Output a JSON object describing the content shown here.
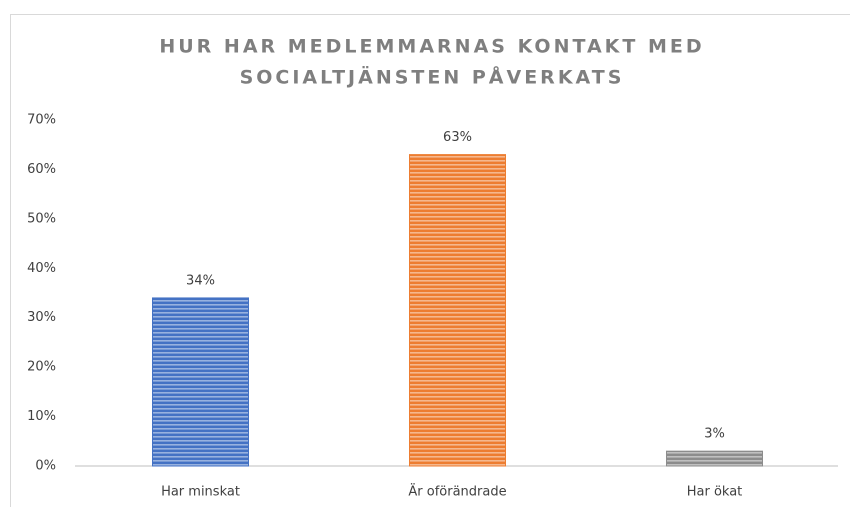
{
  "chart_data": {
    "type": "bar",
    "title": [
      "HUR HAR MEDLEMMARNAS KONTAKT MED",
      "SOCIALTJÄNSTEN PÅVERKATS"
    ],
    "categories": [
      "Har minskat",
      "Är oförändrade",
      "Har ökat"
    ],
    "values": [
      34,
      63,
      3
    ],
    "value_labels": [
      "34%",
      "63%",
      "3%"
    ],
    "colors": [
      "#4472c4",
      "#ed7d31",
      "#8c8c8c"
    ],
    "ylim": [
      0,
      70
    ],
    "yticks": [
      {
        "value": 0,
        "label": "0%"
      },
      {
        "value": 10,
        "label": "10%"
      },
      {
        "value": 20,
        "label": "20%"
      },
      {
        "value": 30,
        "label": "30%"
      },
      {
        "value": 40,
        "label": "40%"
      },
      {
        "value": 50,
        "label": "50%"
      },
      {
        "value": 60,
        "label": "60%"
      },
      {
        "value": 70,
        "label": "70%"
      }
    ],
    "grid": false
  }
}
